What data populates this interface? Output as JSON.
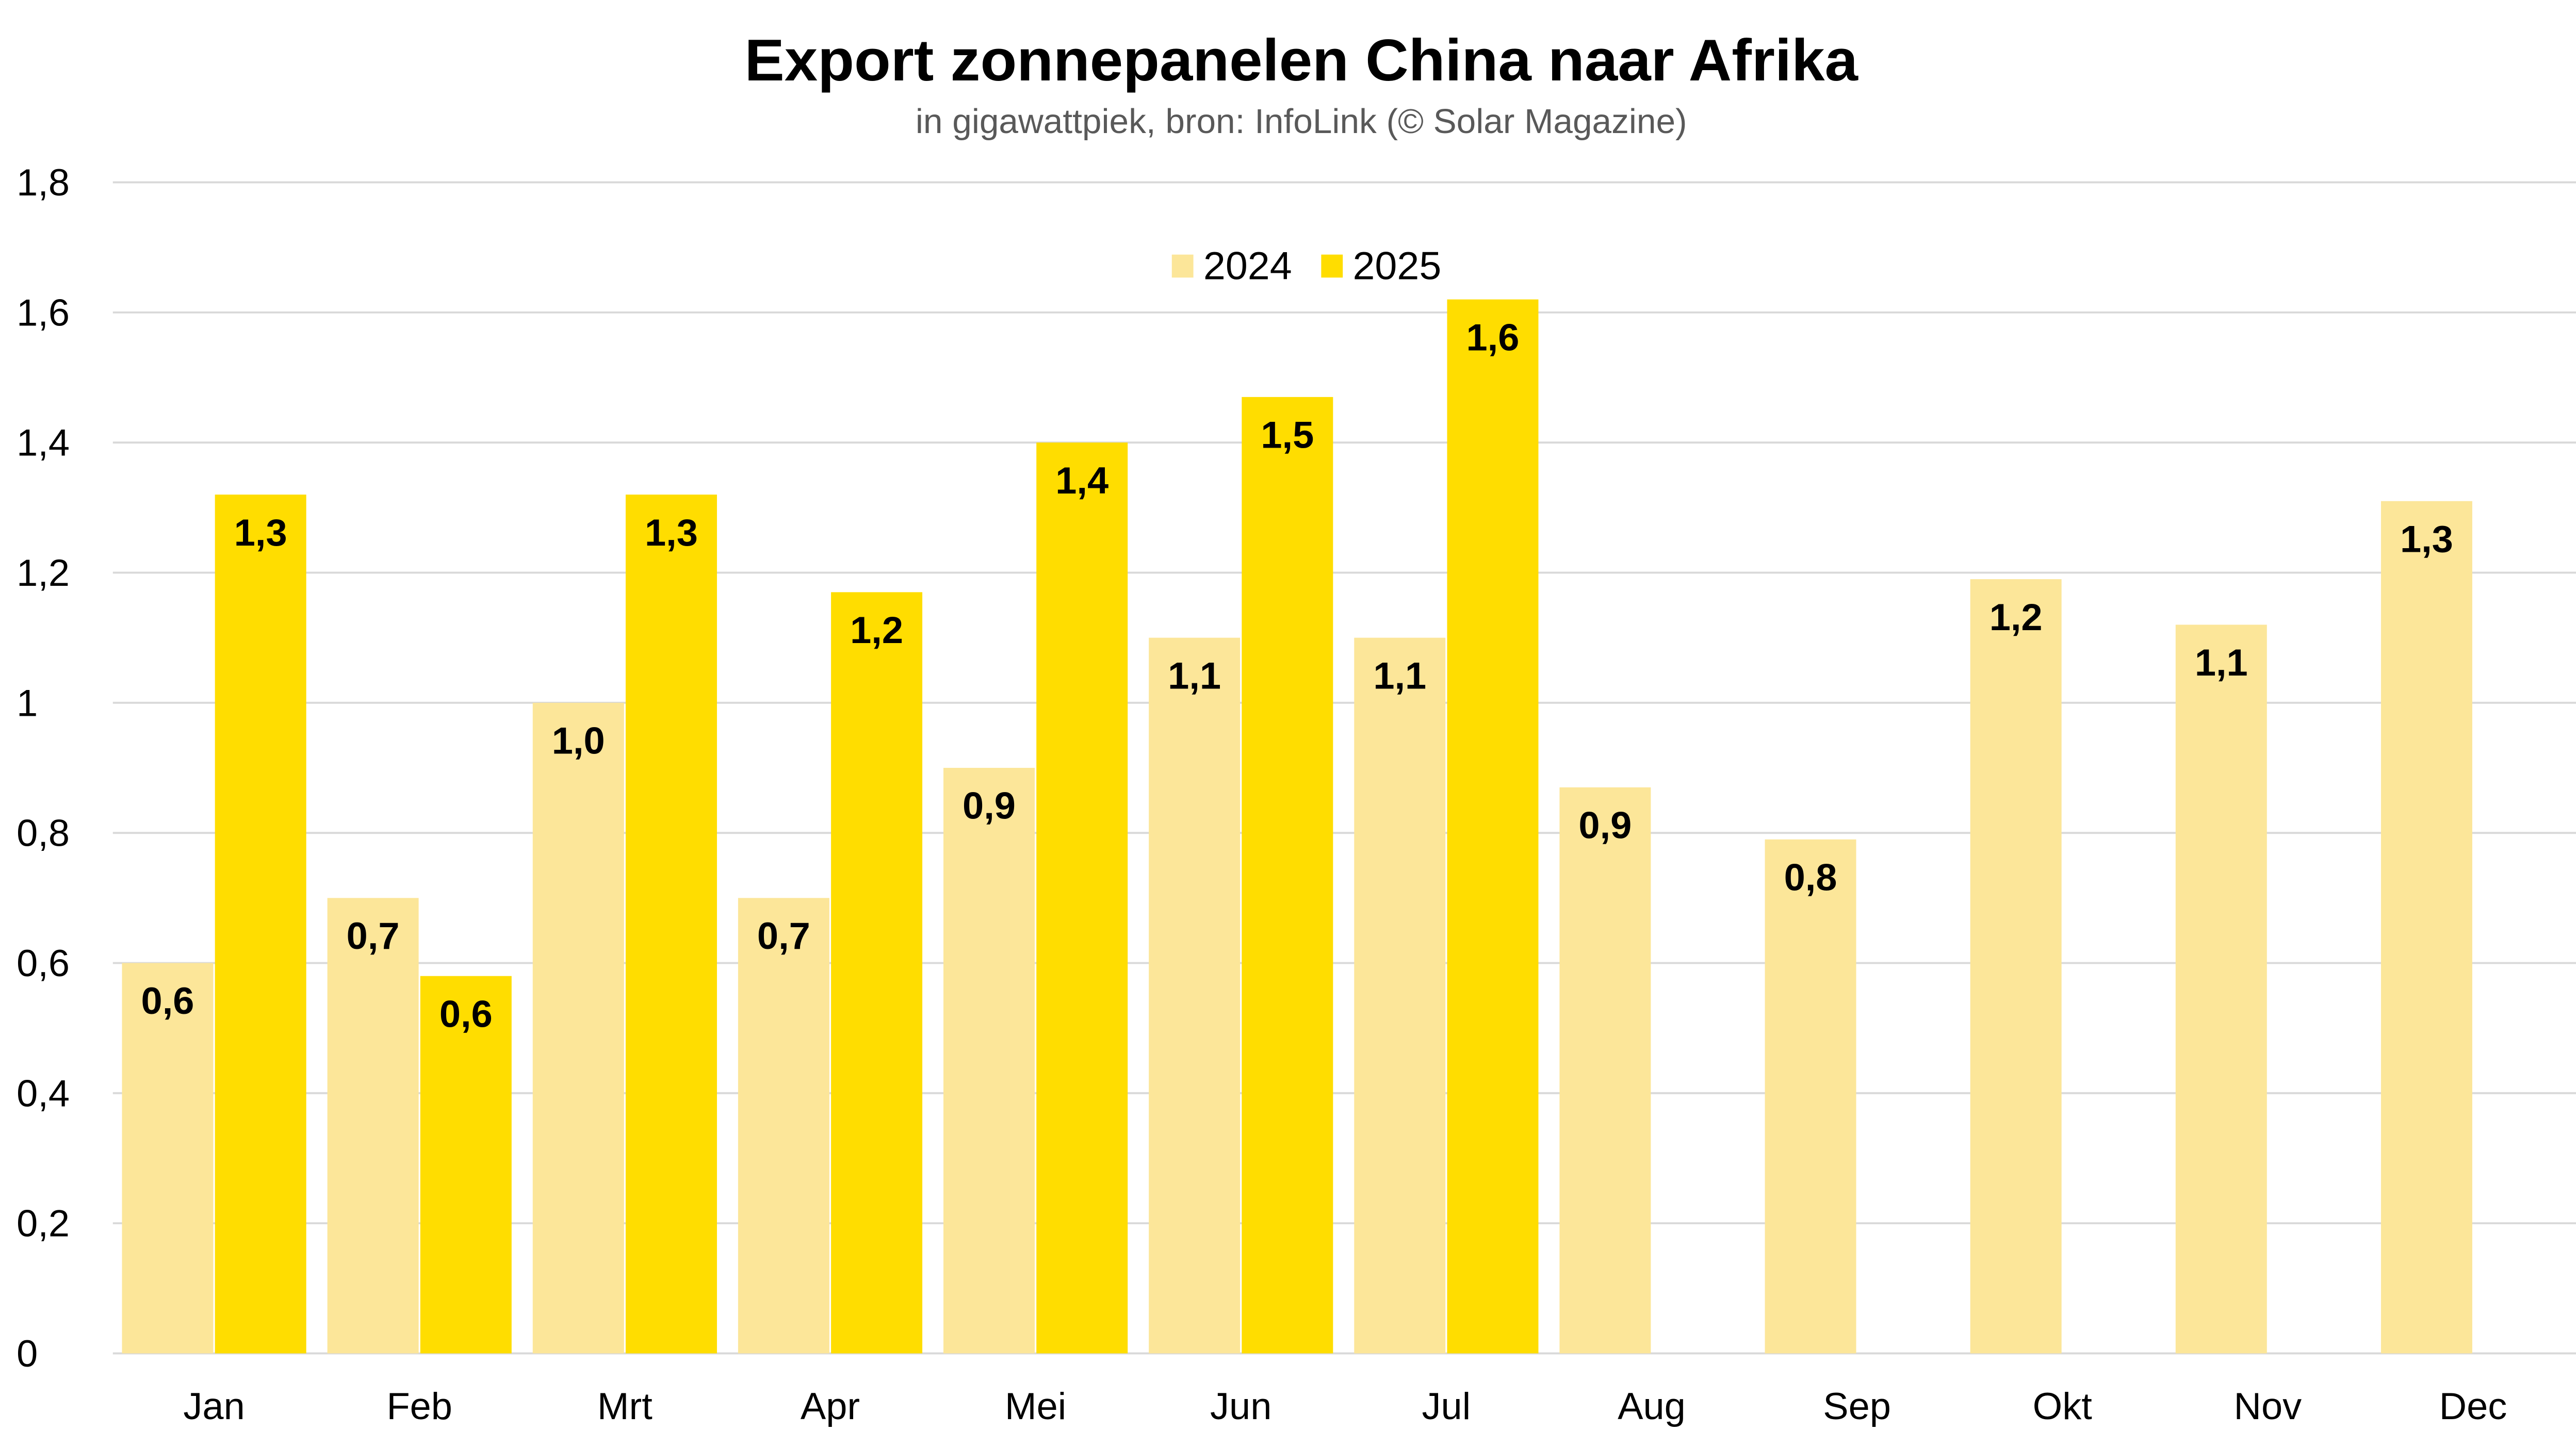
{
  "chart_data": {
    "type": "bar",
    "title": "Export zonnepanelen China naar Afrika",
    "subtitle": "in gigawattpiek, bron: InfoLink (© Solar Magazine)",
    "xlabel": "",
    "ylabel": "",
    "ylim": [
      0,
      1.8
    ],
    "yticks": [
      "0",
      "0,2",
      "0,4",
      "0,6",
      "0,8",
      "1",
      "1,2",
      "1,4",
      "1,6",
      "1,8"
    ],
    "grid": true,
    "legend_position": "top-center",
    "categories": [
      "Jan",
      "Feb",
      "Mrt",
      "Apr",
      "Mei",
      "Jun",
      "Jul",
      "Aug",
      "Sep",
      "Okt",
      "Nov",
      "Dec"
    ],
    "series": [
      {
        "name": "2024",
        "color": "#FCE699",
        "values": [
          0.6,
          0.7,
          1.0,
          0.7,
          0.9,
          1.1,
          1.1,
          0.87,
          0.79,
          1.19,
          1.12,
          1.31
        ],
        "labels": [
          "0,6",
          "0,7",
          "1,0",
          "0,7",
          "0,9",
          "1,1",
          "1,1",
          "0,9",
          "0,8",
          "1,2",
          "1,1",
          "1,3"
        ]
      },
      {
        "name": "2025",
        "color": "#FFDD00",
        "values": [
          1.32,
          0.58,
          1.32,
          1.17,
          1.4,
          1.47,
          1.62,
          null,
          null,
          null,
          null,
          null
        ],
        "labels": [
          "1,3",
          "0,6",
          "1,3",
          "1,2",
          "1,4",
          "1,5",
          "1,6",
          null,
          null,
          null,
          null,
          null
        ]
      }
    ]
  }
}
